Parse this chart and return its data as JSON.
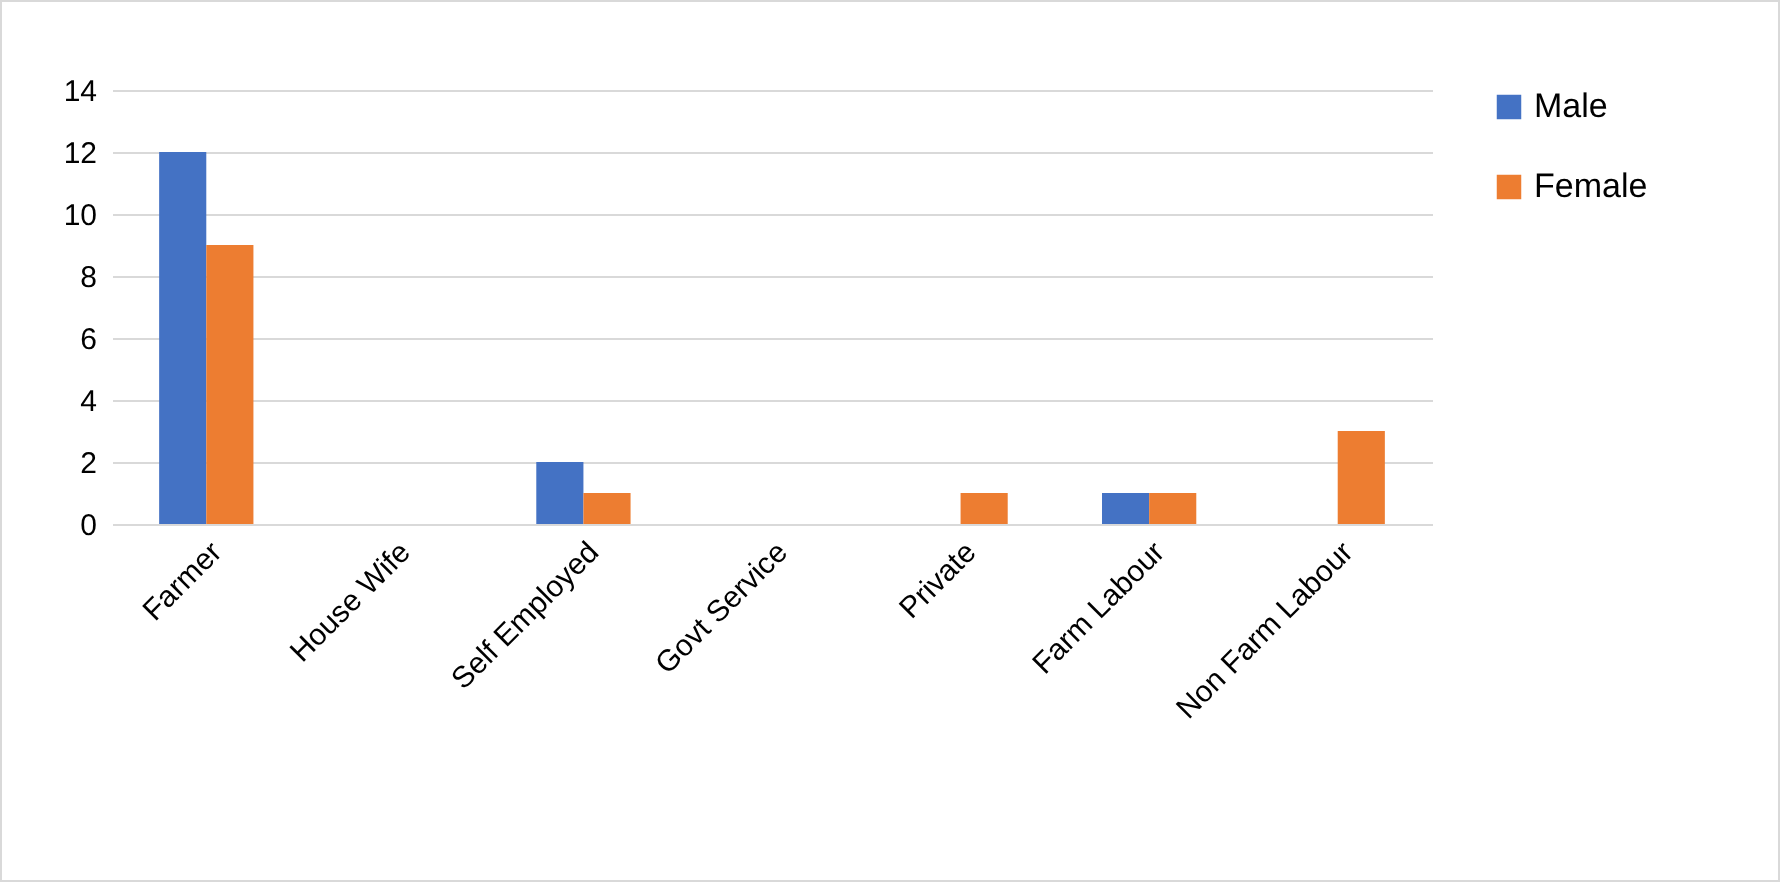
{
  "chart_data": {
    "type": "bar",
    "categories": [
      "Farmer",
      "House Wife",
      "Self Employed",
      "Govt Service",
      "Private",
      "Farm Labour",
      "Non Farm Labour"
    ],
    "series": [
      {
        "name": "Male",
        "color": "#4472c4",
        "values": [
          12,
          0,
          2,
          0,
          0,
          1,
          0
        ]
      },
      {
        "name": "Female",
        "color": "#ed7d31",
        "values": [
          9,
          0,
          1,
          0,
          1,
          1,
          3
        ]
      }
    ],
    "ylim": [
      0,
      14
    ],
    "yticks": [
      0,
      2,
      4,
      6,
      8,
      10,
      12,
      14
    ],
    "grid": "y",
    "legend": "right"
  }
}
